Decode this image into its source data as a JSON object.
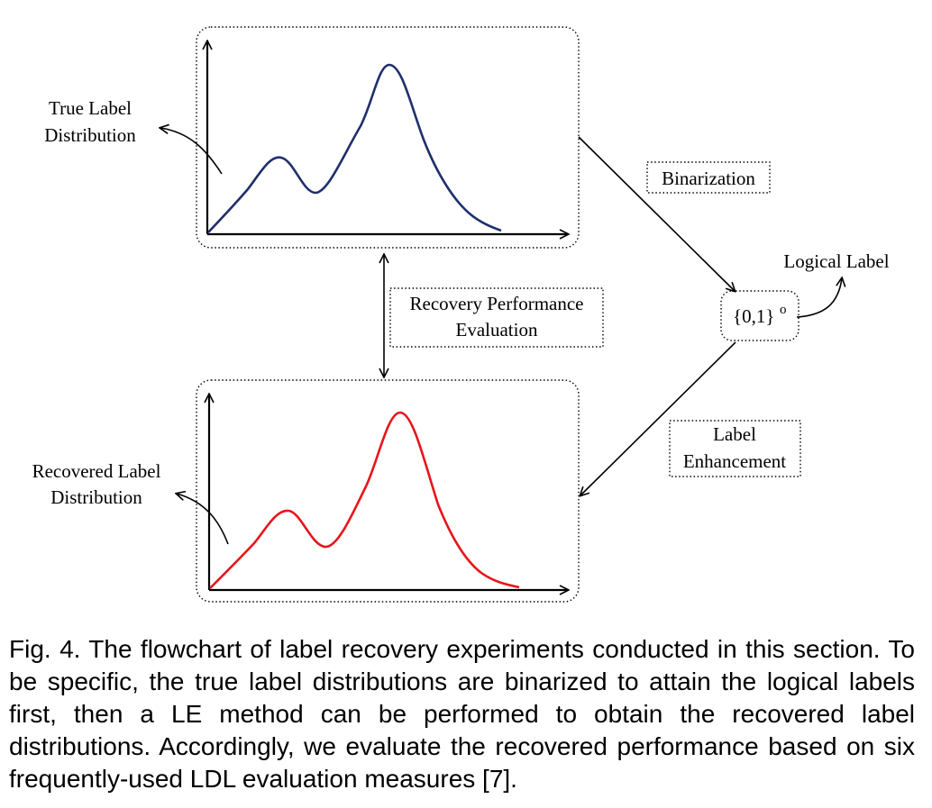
{
  "diagram": {
    "true_label": [
      "True Label",
      "Distribution"
    ],
    "recovered_label": [
      "Recovered Label",
      "Distribution"
    ],
    "binarization": "Binarization",
    "recovery_eval": [
      "Recovery Performance",
      "Evaluation"
    ],
    "logical_label": "Logical Label",
    "logical_set": "{0,1}",
    "logical_superscript": "o",
    "label_enhancement": [
      "Label",
      "Enhancement"
    ],
    "colors": {
      "true_curve": "#1f2f6b",
      "recovered_curve": "#e8141b"
    }
  },
  "caption": "Fig. 4. The flowchart of label recovery experiments conducted in this section. To be specific, the true label distributions are binarized to attain the logical labels first, then a LE method can be performed to obtain the recovered label distributions. Accordingly, we evaluate the recovered performance based on six frequently-used LDL evaluation measures [7]."
}
